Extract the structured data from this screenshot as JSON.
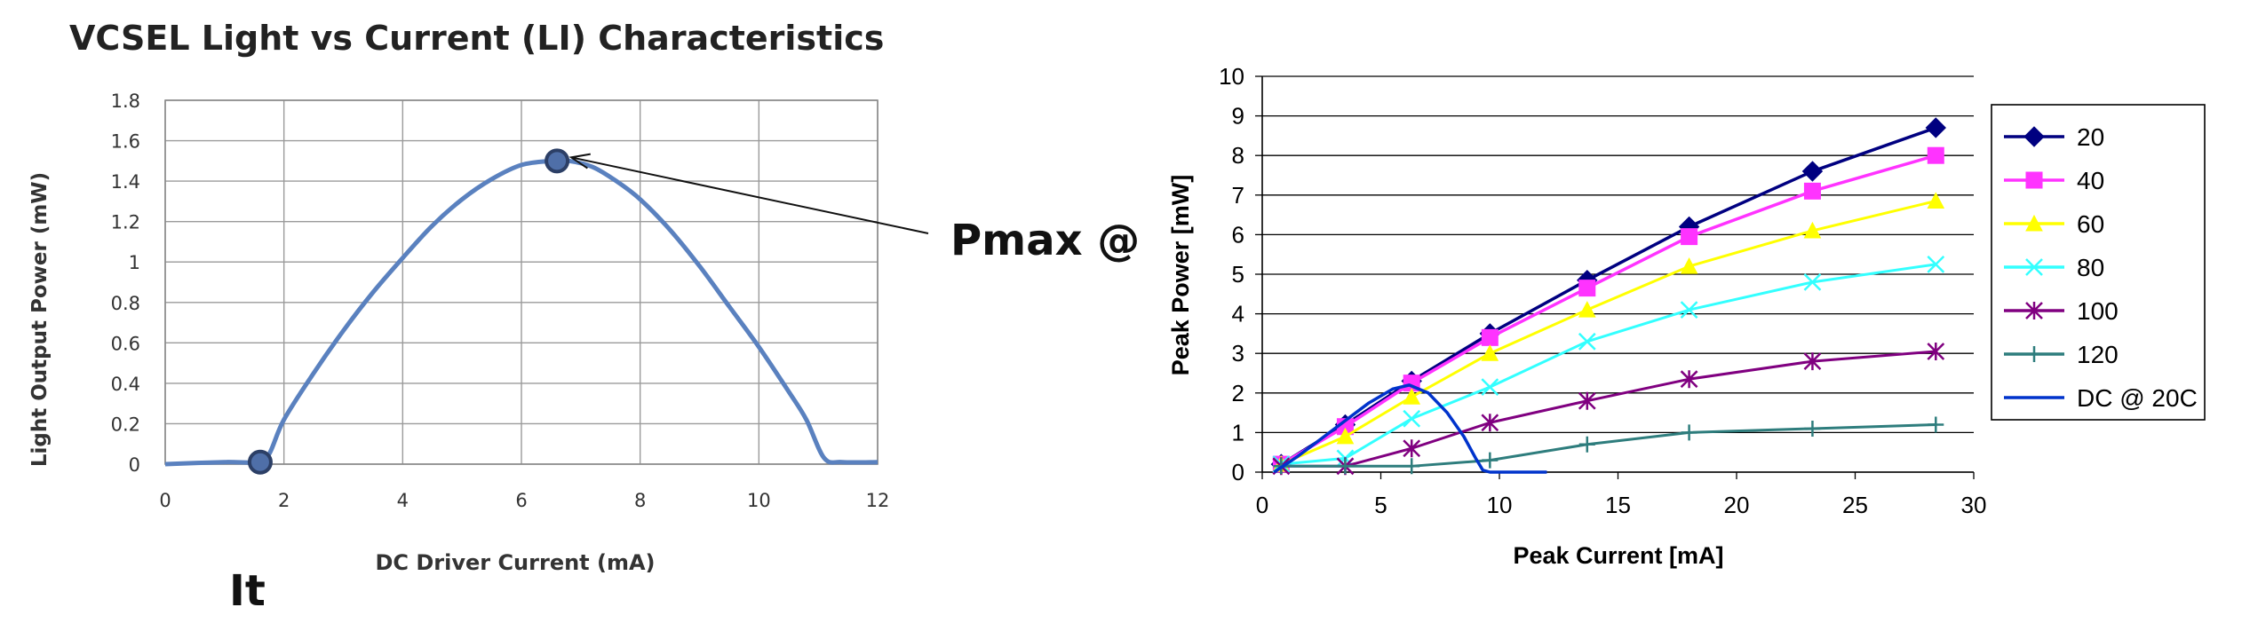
{
  "chart_data": [
    {
      "type": "line",
      "title": "VCSEL Light vs Current (LI) Characteristics",
      "xlabel": "DC Driver Current (mA)",
      "ylabel": "Light Output Power  (mW)",
      "xlim": [
        0,
        12
      ],
      "ylim": [
        0,
        1.8
      ],
      "x_ticks": [
        "0",
        "2",
        "4",
        "6",
        "8",
        "10",
        "12"
      ],
      "y_ticks": [
        "0",
        "0.2",
        "0.4",
        "0.6",
        "0.8",
        "1",
        "1.2",
        "1.4",
        "1.6",
        "1.8"
      ],
      "grid": true,
      "series": [
        {
          "color": "#5a81bf",
          "x": [
            0,
            1.0,
            1.55,
            1.75,
            2.0,
            2.5,
            3.0,
            3.5,
            4.0,
            4.5,
            5.0,
            5.5,
            6.0,
            6.5,
            6.8,
            7.2,
            7.6,
            8.0,
            8.5,
            9.0,
            9.5,
            10.0,
            10.5,
            10.8,
            11.1,
            11.4,
            12.0
          ],
          "y": [
            0,
            0.01,
            0.01,
            0.05,
            0.22,
            0.45,
            0.66,
            0.85,
            1.02,
            1.18,
            1.31,
            1.41,
            1.48,
            1.5,
            1.5,
            1.47,
            1.4,
            1.31,
            1.16,
            0.98,
            0.78,
            0.58,
            0.36,
            0.22,
            0.03,
            0.01,
            0.01
          ]
        }
      ],
      "markers": [
        {
          "name": "It",
          "x": 1.6,
          "y": 0.01
        },
        {
          "name": "Pmax",
          "x": 6.6,
          "y": 1.5
        }
      ],
      "annotations": [
        "Pmax @",
        "It"
      ]
    },
    {
      "type": "line",
      "title": "",
      "xlabel": "Peak Current [mA]",
      "ylabel": "Peak Power [mW]",
      "xlim": [
        0,
        30
      ],
      "ylim": [
        0,
        10
      ],
      "x_ticks": [
        "0",
        "5",
        "10",
        "15",
        "20",
        "25",
        "30"
      ],
      "y_ticks": [
        "0",
        "1",
        "2",
        "3",
        "4",
        "5",
        "6",
        "7",
        "8",
        "9",
        "10"
      ],
      "grid": true,
      "legend_position": "right",
      "series": [
        {
          "name": "20",
          "color": "#000080",
          "marker": "diamond",
          "x": [
            0.8,
            3.5,
            6.3,
            9.6,
            13.7,
            18,
            23.2,
            28.4
          ],
          "y": [
            0.2,
            1.2,
            2.3,
            3.5,
            4.85,
            6.2,
            7.6,
            8.7
          ]
        },
        {
          "name": "40",
          "color": "#ff33ff",
          "marker": "square",
          "x": [
            0.8,
            3.5,
            6.3,
            9.6,
            13.7,
            18,
            23.2,
            28.4
          ],
          "y": [
            0.2,
            1.15,
            2.25,
            3.4,
            4.65,
            5.95,
            7.1,
            8.0
          ]
        },
        {
          "name": "60",
          "color": "#ffff00",
          "marker": "triangle",
          "x": [
            0.8,
            3.5,
            6.3,
            9.6,
            13.7,
            18,
            23.2,
            28.4
          ],
          "y": [
            0.2,
            0.9,
            1.9,
            3.0,
            4.1,
            5.2,
            6.1,
            6.85
          ]
        },
        {
          "name": "80",
          "color": "#33ffff",
          "marker": "x",
          "x": [
            0.8,
            3.5,
            6.3,
            9.6,
            13.7,
            18,
            23.2,
            28.4
          ],
          "y": [
            0.2,
            0.35,
            1.35,
            2.15,
            3.3,
            4.1,
            4.8,
            5.25
          ]
        },
        {
          "name": "100",
          "color": "#800080",
          "marker": "star",
          "x": [
            0.8,
            3.5,
            6.3,
            9.6,
            13.7,
            18,
            23.2,
            28.4
          ],
          "y": [
            0.15,
            0.15,
            0.6,
            1.25,
            1.8,
            2.35,
            2.8,
            3.05
          ]
        },
        {
          "name": "120",
          "color": "#2e7d7d",
          "marker": "plus",
          "x": [
            0.8,
            3.5,
            6.3,
            9.6,
            13.7,
            18,
            23.2,
            28.4
          ],
          "y": [
            0.15,
            0.15,
            0.15,
            0.3,
            0.7,
            1.0,
            1.1,
            1.2
          ]
        },
        {
          "name": "DC @ 20C",
          "color": "#0033cc",
          "marker": "none",
          "x": [
            0.5,
            1.5,
            2.5,
            3.5,
            4.5,
            5.5,
            6.2,
            7.0,
            7.8,
            8.5,
            9.0,
            9.3,
            9.6,
            10.0,
            11.0,
            12.0
          ],
          "y": [
            0,
            0.4,
            0.85,
            1.3,
            1.75,
            2.1,
            2.2,
            2.0,
            1.5,
            0.9,
            0.35,
            0.05,
            0,
            0,
            0,
            0
          ]
        }
      ]
    }
  ]
}
